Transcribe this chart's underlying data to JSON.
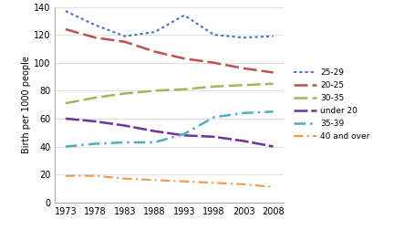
{
  "years": [
    1973,
    1978,
    1983,
    1988,
    1993,
    1998,
    2003,
    2008
  ],
  "series": {
    "25-29": {
      "values": [
        137,
        127,
        119,
        122,
        134,
        120,
        118,
        119
      ],
      "color": "#4472C4",
      "lw": 1.5
    },
    "20-25": {
      "values": [
        124,
        118,
        115,
        108,
        103,
        100,
        96,
        93
      ],
      "color": "#C0504D",
      "lw": 1.8
    },
    "30-35": {
      "values": [
        71,
        75,
        78,
        80,
        81,
        83,
        84,
        85
      ],
      "color": "#9BBB59",
      "lw": 1.8
    },
    "under 20": {
      "values": [
        60,
        58,
        55,
        51,
        48,
        47,
        44,
        40
      ],
      "color": "#7030A0",
      "lw": 1.8
    },
    "35-39": {
      "values": [
        40,
        42,
        43,
        43,
        49,
        61,
        64,
        65
      ],
      "color": "#4BACC6",
      "lw": 1.8
    },
    "40 and over": {
      "values": [
        19,
        19,
        17,
        16,
        15,
        14,
        13,
        11
      ],
      "color": "#F79646",
      "lw": 1.5
    }
  },
  "legend_order": [
    "25-29",
    "20-25",
    "30-35",
    "under 20",
    "35-39",
    "40 and over"
  ],
  "ylabel": "Birth per 1000 people",
  "ylim": [
    0,
    140
  ],
  "yticks": [
    0,
    20,
    40,
    60,
    80,
    100,
    120,
    140
  ],
  "xticks": [
    1973,
    1978,
    1983,
    1988,
    1993,
    1998,
    2003,
    2008
  ],
  "background_color": "#FFFFFF",
  "grid_color": "#D9D9D9"
}
